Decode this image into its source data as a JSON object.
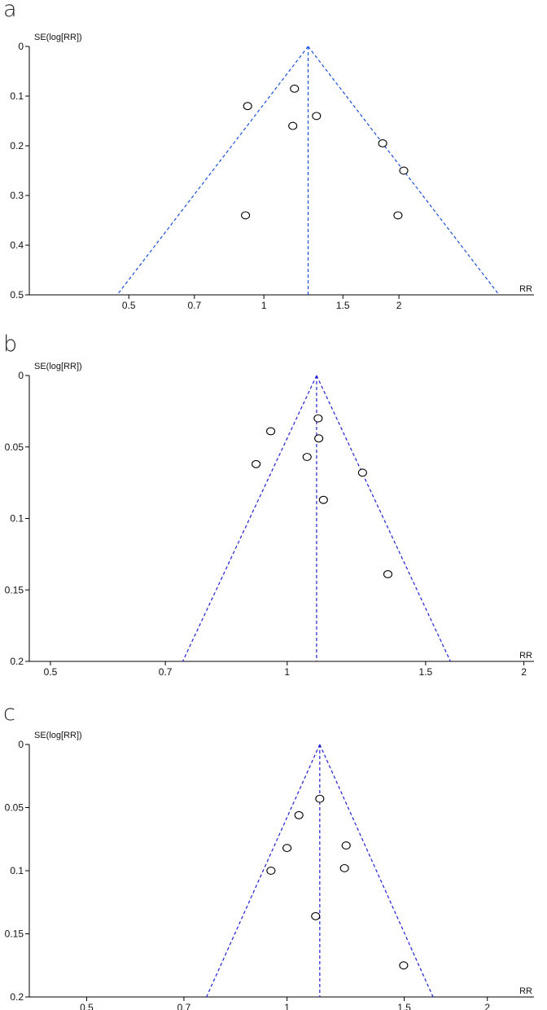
{
  "chart_data": [
    {
      "type": "scatter",
      "panel_label": "a",
      "title": "",
      "xlabel": "RR",
      "ylabel": "SE(log[RR])",
      "x_scale": "log",
      "xlim": [
        0.3,
        4.0
      ],
      "ylim": [
        0,
        0.5
      ],
      "y_inverted": true,
      "x_ticks": [
        0.5,
        0.7,
        1,
        1.5,
        2
      ],
      "x_tick_labels": [
        "0.5",
        "0.7",
        "1",
        "1.5",
        "2"
      ],
      "y_ticks": [
        0,
        0.1,
        0.2,
        0.3,
        0.4,
        0.5
      ],
      "y_tick_labels": [
        "0",
        "0.1",
        "0.2",
        "0.3",
        "0.4",
        "0.5"
      ],
      "pooled_rr": 1.255,
      "funnel_color": "#1a4fd8",
      "points": [
        {
          "x": 0.92,
          "y": 0.12
        },
        {
          "x": 1.17,
          "y": 0.085
        },
        {
          "x": 1.16,
          "y": 0.16
        },
        {
          "x": 1.31,
          "y": 0.14
        },
        {
          "x": 0.91,
          "y": 0.34
        },
        {
          "x": 1.84,
          "y": 0.195
        },
        {
          "x": 2.05,
          "y": 0.25
        },
        {
          "x": 1.99,
          "y": 0.34
        }
      ]
    },
    {
      "type": "scatter",
      "panel_label": "b",
      "title": "",
      "xlabel": "RR",
      "ylabel": "SE(log[RR])",
      "x_scale": "log",
      "xlim": [
        0.47,
        2.06
      ],
      "ylim": [
        0,
        0.2
      ],
      "y_inverted": true,
      "x_ticks": [
        0.5,
        0.7,
        1,
        1.5,
        2
      ],
      "x_tick_labels": [
        "0.5",
        "0.7",
        "1",
        "1.5",
        "2"
      ],
      "y_ticks": [
        0,
        0.05,
        0.1,
        0.15,
        0.2
      ],
      "y_tick_labels": [
        "0",
        "0.05",
        "0.1",
        "0.15",
        "0.2"
      ],
      "pooled_rr": 1.09,
      "funnel_color": "#1f1fd6",
      "points": [
        {
          "x": 1.095,
          "y": 0.03
        },
        {
          "x": 0.953,
          "y": 0.039
        },
        {
          "x": 1.097,
          "y": 0.044
        },
        {
          "x": 1.06,
          "y": 0.057
        },
        {
          "x": 0.913,
          "y": 0.062
        },
        {
          "x": 1.247,
          "y": 0.068
        },
        {
          "x": 1.112,
          "y": 0.087
        },
        {
          "x": 1.343,
          "y": 0.139
        }
      ]
    },
    {
      "type": "scatter",
      "panel_label": "c",
      "title": "",
      "xlabel": "RR",
      "ylabel": "SE(log[RR])",
      "x_scale": "log",
      "xlim": [
        0.41,
        2.35
      ],
      "ylim": [
        0,
        0.2
      ],
      "y_inverted": true,
      "x_ticks": [
        0.5,
        0.7,
        1,
        1.5,
        2
      ],
      "x_tick_labels": [
        "0.5",
        "0.7",
        "1",
        "1.5",
        "2"
      ],
      "y_ticks": [
        0,
        0.05,
        0.1,
        0.15,
        0.2
      ],
      "y_tick_labels": [
        "0",
        "0.05",
        "0.1",
        "0.15",
        "0.2"
      ],
      "pooled_rr": 1.12,
      "funnel_color": "#1f1fd6",
      "points": [
        {
          "x": 1.12,
          "y": 0.043
        },
        {
          "x": 1.042,
          "y": 0.056
        },
        {
          "x": 1.227,
          "y": 0.08
        },
        {
          "x": 1.0,
          "y": 0.082
        },
        {
          "x": 1.22,
          "y": 0.098
        },
        {
          "x": 0.946,
          "y": 0.1
        },
        {
          "x": 1.104,
          "y": 0.136
        },
        {
          "x": 1.497,
          "y": 0.175
        }
      ]
    }
  ]
}
